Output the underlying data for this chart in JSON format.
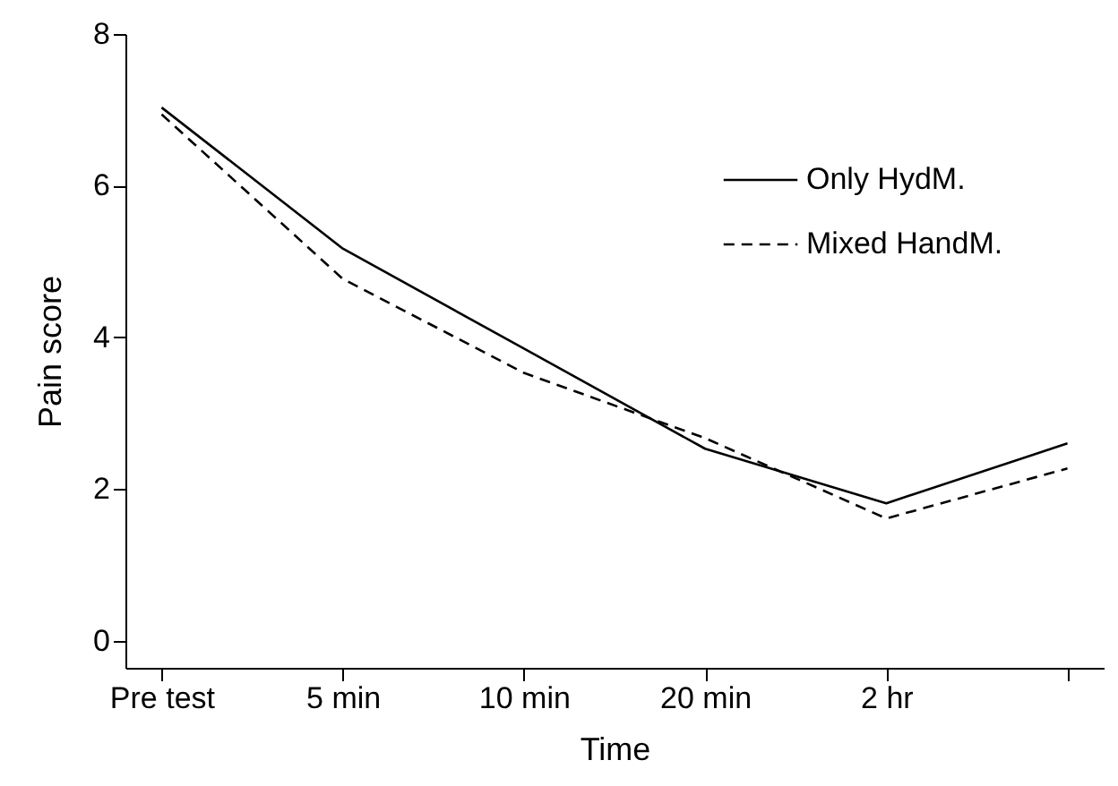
{
  "chart_data": {
    "type": "line",
    "xlabel": "Time",
    "ylabel": "Pain score",
    "legend": "top right",
    "categories": [
      "Pre test",
      "5 min",
      "10 min",
      "20 min",
      "2 hr",
      null
    ],
    "ylim": [
      -0.36,
      8
    ],
    "yticks": [
      0,
      2,
      4,
      6,
      8
    ],
    "series": [
      {
        "name": "Only HydM.",
        "color": "#000000",
        "line_style": "solid",
        "values": [
          7.03,
          5.17,
          3.85,
          2.53,
          1.81,
          2.6
        ]
      },
      {
        "name": "Mixed HandM.",
        "color": "#000000",
        "line_style": "dashed",
        "values": [
          6.94,
          4.77,
          3.53,
          2.67,
          1.61,
          2.27
        ]
      }
    ]
  }
}
